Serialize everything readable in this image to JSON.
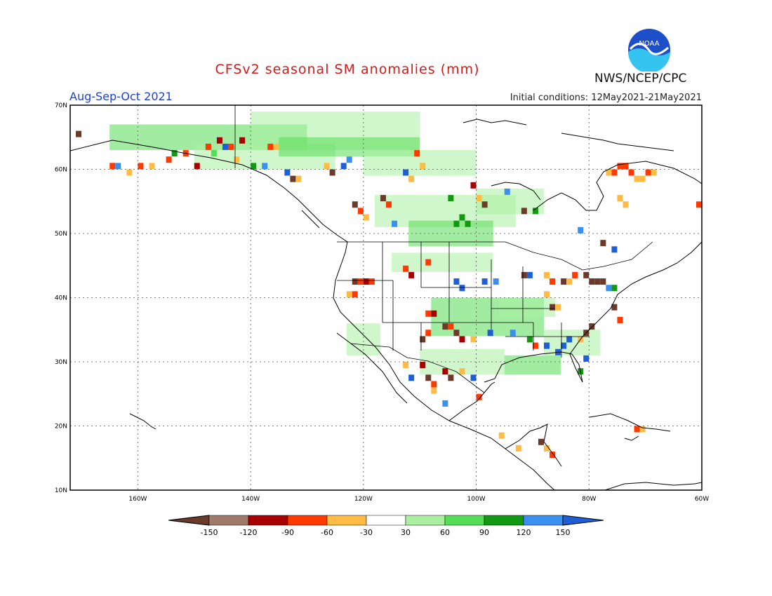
{
  "header": {
    "title": "CFSv2 seasonal SM anomalies (mm)",
    "period": "Aug-Sep-Oct 2021",
    "initial_conditions": "Initial conditions: 12May2021-21May2021",
    "organization": "NWS/NCEP/CPC",
    "logo_text": "NOAA"
  },
  "map": {
    "lon_range": [
      -172,
      -60
    ],
    "lat_range": [
      10,
      70
    ],
    "lat_labels": [
      "70N",
      "60N",
      "50N",
      "40N",
      "30N",
      "20N",
      "10N"
    ],
    "lon_labels": [
      "160W",
      "140W",
      "120W",
      "100W",
      "80W",
      "60W"
    ]
  },
  "legend": {
    "labels": [
      "-150",
      "-120",
      "-90",
      "-60",
      "-30",
      "30",
      "60",
      "90",
      "120",
      "150"
    ],
    "colors": [
      "#6b3a2a",
      "#a07b6a",
      "#a80000",
      "#ff3a00",
      "#ffbb44",
      "#ffffff",
      "#aaf0a0",
      "#55dd55",
      "#119911",
      "#3a8ff0",
      "#1f5fd6"
    ]
  },
  "anomalies": [
    {
      "lon": -171,
      "lat": 65,
      "v": -150
    },
    {
      "lon": -165,
      "lat": 60,
      "v": -90
    },
    {
      "lon": -164,
      "lat": 60,
      "v": 120
    },
    {
      "lon": -162,
      "lat": 59,
      "v": -60
    },
    {
      "lon": -160,
      "lat": 60,
      "v": -90
    },
    {
      "lon": -158,
      "lat": 60,
      "v": -60
    },
    {
      "lon": -155,
      "lat": 61,
      "v": -90
    },
    {
      "lon": -154,
      "lat": 62,
      "v": 90
    },
    {
      "lon": -152,
      "lat": 62,
      "v": -90
    },
    {
      "lon": -150,
      "lat": 60,
      "v": -120
    },
    {
      "lon": -148,
      "lat": 63,
      "v": -90
    },
    {
      "lon": -147,
      "lat": 62,
      "v": 60
    },
    {
      "lon": -146,
      "lat": 64,
      "v": -120
    },
    {
      "lon": -145,
      "lat": 63,
      "v": 150
    },
    {
      "lon": -144,
      "lat": 63,
      "v": -90
    },
    {
      "lon": -143,
      "lat": 61,
      "v": -60
    },
    {
      "lon": -142,
      "lat": 64,
      "v": -120
    },
    {
      "lon": -140,
      "lat": 60,
      "v": 90
    },
    {
      "lon": -138,
      "lat": 60,
      "v": 120
    },
    {
      "lon": -137,
      "lat": 63,
      "v": -90
    },
    {
      "lon": -136,
      "lat": 63,
      "v": -60
    },
    {
      "lon": -134,
      "lat": 59,
      "v": 150
    },
    {
      "lon": -133,
      "lat": 58,
      "v": -150
    },
    {
      "lon": -132,
      "lat": 58,
      "v": -60
    },
    {
      "lon": -127,
      "lat": 60,
      "v": -60
    },
    {
      "lon": -126,
      "lat": 59,
      "v": -150
    },
    {
      "lon": -124,
      "lat": 60,
      "v": 150
    },
    {
      "lon": -123,
      "lat": 61,
      "v": 120
    },
    {
      "lon": -122,
      "lat": 54,
      "v": -150
    },
    {
      "lon": -121,
      "lat": 53,
      "v": -90
    },
    {
      "lon": -120,
      "lat": 52,
      "v": -60
    },
    {
      "lon": -117,
      "lat": 55,
      "v": -150
    },
    {
      "lon": -116,
      "lat": 54,
      "v": -90
    },
    {
      "lon": -115,
      "lat": 51,
      "v": 120
    },
    {
      "lon": -113,
      "lat": 59,
      "v": 150
    },
    {
      "lon": -112,
      "lat": 58,
      "v": -60
    },
    {
      "lon": -111,
      "lat": 62,
      "v": -90
    },
    {
      "lon": -110,
      "lat": 60,
      "v": -60
    },
    {
      "lon": -105,
      "lat": 55,
      "v": 90
    },
    {
      "lon": -104,
      "lat": 51,
      "v": 90
    },
    {
      "lon": -103,
      "lat": 52,
      "v": 90
    },
    {
      "lon": -102,
      "lat": 51,
      "v": 90
    },
    {
      "lon": -101,
      "lat": 57,
      "v": -120
    },
    {
      "lon": -100,
      "lat": 55,
      "v": -60
    },
    {
      "lon": -99,
      "lat": 54,
      "v": -150
    },
    {
      "lon": -95,
      "lat": 56,
      "v": 120
    },
    {
      "lon": -92,
      "lat": 53,
      "v": -150
    },
    {
      "lon": -90,
      "lat": 53,
      "v": 90
    },
    {
      "lon": -77,
      "lat": 59,
      "v": -60
    },
    {
      "lon": -76,
      "lat": 59,
      "v": -90
    },
    {
      "lon": -75,
      "lat": 60,
      "v": -90
    },
    {
      "lon": -74,
      "lat": 60,
      "v": -90
    },
    {
      "lon": -73,
      "lat": 59,
      "v": -90
    },
    {
      "lon": -72,
      "lat": 58,
      "v": -60
    },
    {
      "lon": -71,
      "lat": 58,
      "v": -60
    },
    {
      "lon": -70,
      "lat": 59,
      "v": -90
    },
    {
      "lon": -69,
      "lat": 59,
      "v": -60
    },
    {
      "lon": -75,
      "lat": 55,
      "v": -60
    },
    {
      "lon": -74,
      "lat": 54,
      "v": -60
    },
    {
      "lon": -61,
      "lat": 54,
      "v": -90
    },
    {
      "lon": -82,
      "lat": 50,
      "v": 120
    },
    {
      "lon": -78,
      "lat": 48,
      "v": -150
    },
    {
      "lon": -76,
      "lat": 47,
      "v": 150
    },
    {
      "lon": -112,
      "lat": 43,
      "v": -120
    },
    {
      "lon": -113,
      "lat": 44,
      "v": -90
    },
    {
      "lon": -109,
      "lat": 45,
      "v": -90
    },
    {
      "lon": -122,
      "lat": 42,
      "v": -150
    },
    {
      "lon": -121,
      "lat": 42,
      "v": -90
    },
    {
      "lon": -120,
      "lat": 42,
      "v": -120
    },
    {
      "lon": -119,
      "lat": 42,
      "v": -90
    },
    {
      "lon": -123,
      "lat": 40,
      "v": -60
    },
    {
      "lon": -122,
      "lat": 40,
      "v": -90
    },
    {
      "lon": -104,
      "lat": 42,
      "v": 150
    },
    {
      "lon": -103,
      "lat": 41,
      "v": 150
    },
    {
      "lon": -99,
      "lat": 42,
      "v": 150
    },
    {
      "lon": -97,
      "lat": 42,
      "v": 120
    },
    {
      "lon": -92,
      "lat": 43,
      "v": -150
    },
    {
      "lon": -91,
      "lat": 43,
      "v": 150
    },
    {
      "lon": -88,
      "lat": 43,
      "v": -60
    },
    {
      "lon": -87,
      "lat": 42,
      "v": -90
    },
    {
      "lon": -85,
      "lat": 42,
      "v": -150
    },
    {
      "lon": -84,
      "lat": 42,
      "v": -60
    },
    {
      "lon": -83,
      "lat": 43,
      "v": -90
    },
    {
      "lon": -81,
      "lat": 43,
      "v": -150
    },
    {
      "lon": -80,
      "lat": 42,
      "v": -150
    },
    {
      "lon": -79,
      "lat": 42,
      "v": -150
    },
    {
      "lon": -78,
      "lat": 42,
      "v": -150
    },
    {
      "lon": -77,
      "lat": 41,
      "v": 120
    },
    {
      "lon": -76,
      "lat": 41,
      "v": 90
    },
    {
      "lon": -88,
      "lat": 40,
      "v": -60
    },
    {
      "lon": -87,
      "lat": 38,
      "v": -150
    },
    {
      "lon": -86,
      "lat": 38,
      "v": -60
    },
    {
      "lon": -76,
      "lat": 38,
      "v": -150
    },
    {
      "lon": -75,
      "lat": 36,
      "v": -90
    },
    {
      "lon": -109,
      "lat": 37,
      "v": -90
    },
    {
      "lon": -108,
      "lat": 37,
      "v": -120
    },
    {
      "lon": -106,
      "lat": 35,
      "v": -150
    },
    {
      "lon": -105,
      "lat": 35,
      "v": -90
    },
    {
      "lon": -104,
      "lat": 34,
      "v": -150
    },
    {
      "lon": -103,
      "lat": 33,
      "v": -120
    },
    {
      "lon": -110,
      "lat": 33,
      "v": -150
    },
    {
      "lon": -109,
      "lat": 34,
      "v": -90
    },
    {
      "lon": -101,
      "lat": 33,
      "v": -60
    },
    {
      "lon": -98,
      "lat": 34,
      "v": 150
    },
    {
      "lon": -94,
      "lat": 34,
      "v": 120
    },
    {
      "lon": -91,
      "lat": 33,
      "v": 90
    },
    {
      "lon": -90,
      "lat": 32,
      "v": -90
    },
    {
      "lon": -88,
      "lat": 32,
      "v": 150
    },
    {
      "lon": -86,
      "lat": 31,
      "v": 150
    },
    {
      "lon": -85,
      "lat": 32,
      "v": 150
    },
    {
      "lon": -84,
      "lat": 33,
      "v": 150
    },
    {
      "lon": -82,
      "lat": 33,
      "v": -60
    },
    {
      "lon": -81,
      "lat": 34,
      "v": -150
    },
    {
      "lon": -80,
      "lat": 35,
      "v": -150
    },
    {
      "lon": -81,
      "lat": 30,
      "v": 150
    },
    {
      "lon": -82,
      "lat": 28,
      "v": 90
    },
    {
      "lon": -113,
      "lat": 29,
      "v": -60
    },
    {
      "lon": -112,
      "lat": 27,
      "v": 150
    },
    {
      "lon": -110,
      "lat": 29,
      "v": -120
    },
    {
      "lon": -109,
      "lat": 27,
      "v": -150
    },
    {
      "lon": -108,
      "lat": 26,
      "v": -90
    },
    {
      "lon": -106,
      "lat": 28,
      "v": -120
    },
    {
      "lon": -105,
      "lat": 27,
      "v": -150
    },
    {
      "lon": -103,
      "lat": 28,
      "v": -60
    },
    {
      "lon": -101,
      "lat": 27,
      "v": 150
    },
    {
      "lon": -100,
      "lat": 24,
      "v": -90
    },
    {
      "lon": -108,
      "lat": 25,
      "v": -60
    },
    {
      "lon": -106,
      "lat": 23,
      "v": 120
    },
    {
      "lon": -89,
      "lat": 17,
      "v": -150
    },
    {
      "lon": -88,
      "lat": 16,
      "v": -60
    },
    {
      "lon": -87,
      "lat": 15,
      "v": -90
    },
    {
      "lon": -93,
      "lat": 16,
      "v": -60
    },
    {
      "lon": -72,
      "lat": 19,
      "v": -90
    },
    {
      "lon": -71,
      "lat": 19,
      "v": -60
    },
    {
      "lon": -96,
      "lat": 18,
      "v": -60
    }
  ]
}
